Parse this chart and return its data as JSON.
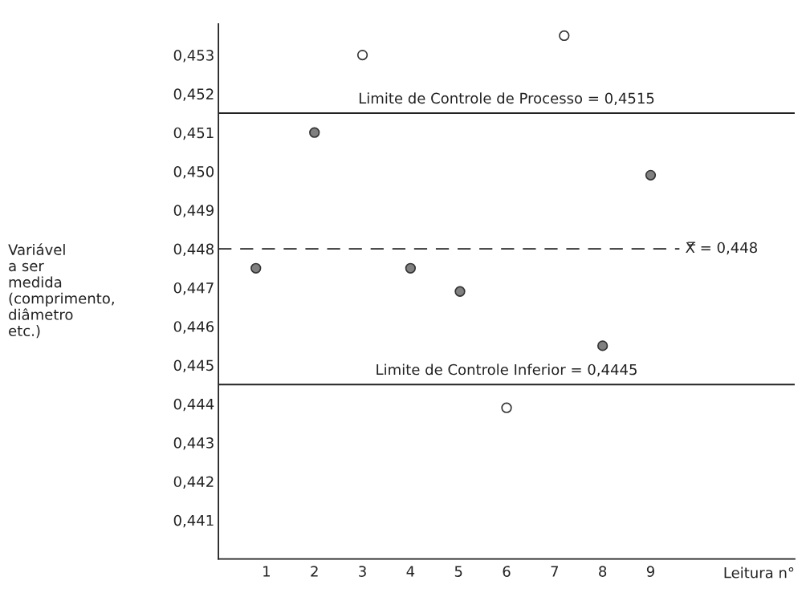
{
  "chart_data": {
    "type": "scatter",
    "xlabel": "Leitura n°",
    "ylabel": "Variável\na ser\nmedida\n(comprimento,\ndiâmetro\netc.)",
    "marker": "circle",
    "grid": false,
    "legend": false,
    "xlim": [
      0,
      12
    ],
    "xticks": [
      1,
      2,
      3,
      4,
      5,
      6,
      7,
      8,
      9
    ],
    "ylim": [
      0.44,
      0.4538
    ],
    "yticks": [
      {
        "value": 0.441,
        "label": "0,441"
      },
      {
        "value": 0.442,
        "label": "0,442"
      },
      {
        "value": 0.443,
        "label": "0,443"
      },
      {
        "value": 0.444,
        "label": "0,444"
      },
      {
        "value": 0.445,
        "label": "0,445"
      },
      {
        "value": 0.446,
        "label": "0,446"
      },
      {
        "value": 0.447,
        "label": "0,447"
      },
      {
        "value": 0.448,
        "label": "0,448"
      },
      {
        "value": 0.449,
        "label": "0,449"
      },
      {
        "value": 0.45,
        "label": "0,450"
      },
      {
        "value": 0.451,
        "label": "0,451"
      },
      {
        "value": 0.452,
        "label": "0,452"
      },
      {
        "value": 0.453,
        "label": "0,453"
      }
    ],
    "series": [
      {
        "color": "#808080",
        "x": [
          0.78,
          2,
          4,
          5.03,
          8,
          9
        ],
        "values": [
          0.4475,
          0.451,
          0.4475,
          0.4469,
          0.4455,
          0.4499
        ]
      },
      {
        "color": "#ffffff",
        "x": [
          3,
          6,
          7.2
        ],
        "values": [
          0.453,
          0.4439,
          0.4535
        ]
      }
    ],
    "ref_lines": [
      {
        "axis": "y",
        "value": 0.4515,
        "label": "Limite de Controle de Processo = 0,4515",
        "line_style": "solid"
      },
      {
        "axis": "y",
        "value": 0.448,
        "label": "X̿ = 0,448",
        "line_style": "dashed"
      },
      {
        "axis": "y",
        "value": 0.4445,
        "label": "Limite de Controle Inferior = 0,4445",
        "line_style": "solid"
      }
    ]
  }
}
